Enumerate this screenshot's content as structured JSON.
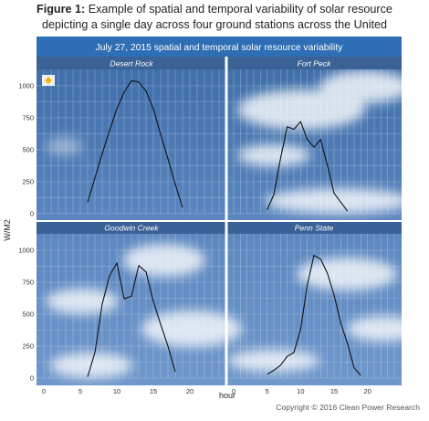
{
  "caption": {
    "prefix": "Figure 1:",
    "line1": "Example of spatial and temporal variability of solar resource",
    "line2": "depicting a single day across four ground stations across the United"
  },
  "copyright": "Copyright © 2016 Clean Power Research",
  "chart_data": {
    "type": "line",
    "title": "July 27, 2015 spatial and temporal solar resource variability",
    "ylabel": "W/M2",
    "xlabel": "hour",
    "xlim": [
      0,
      24
    ],
    "ylim": [
      0,
      1100
    ],
    "xticks": [
      0,
      5,
      10,
      15,
      20
    ],
    "yticks": [
      0,
      250,
      500,
      750,
      1000
    ],
    "grid": true,
    "panels": [
      {
        "name": "Desert Rock",
        "x": [
          6,
          7,
          8,
          9,
          10,
          11,
          12,
          13,
          14,
          15,
          16,
          17,
          18,
          19
        ],
        "y": [
          90,
          280,
          470,
          650,
          820,
          950,
          1040,
          1030,
          960,
          820,
          620,
          430,
          230,
          50
        ]
      },
      {
        "name": "Fort Peck",
        "x": [
          5,
          6,
          7,
          8,
          9,
          10,
          11,
          12,
          13,
          14,
          15,
          16,
          17
        ],
        "y": [
          30,
          150,
          430,
          680,
          660,
          720,
          580,
          520,
          580,
          380,
          160,
          90,
          20
        ]
      },
      {
        "name": "Goodwin Creek",
        "x": [
          6,
          7,
          8,
          9,
          10,
          11,
          12,
          13,
          14,
          15,
          16,
          17,
          18
        ],
        "y": [
          10,
          200,
          580,
          800,
          900,
          620,
          640,
          880,
          830,
          600,
          420,
          250,
          50
        ]
      },
      {
        "name": "Penn State",
        "x": [
          5,
          6,
          7,
          8,
          9,
          10,
          11,
          12,
          13,
          14,
          15,
          16,
          17,
          18,
          19
        ],
        "y": [
          30,
          60,
          100,
          170,
          200,
          380,
          730,
          960,
          930,
          820,
          650,
          430,
          270,
          80,
          20
        ]
      }
    ]
  }
}
